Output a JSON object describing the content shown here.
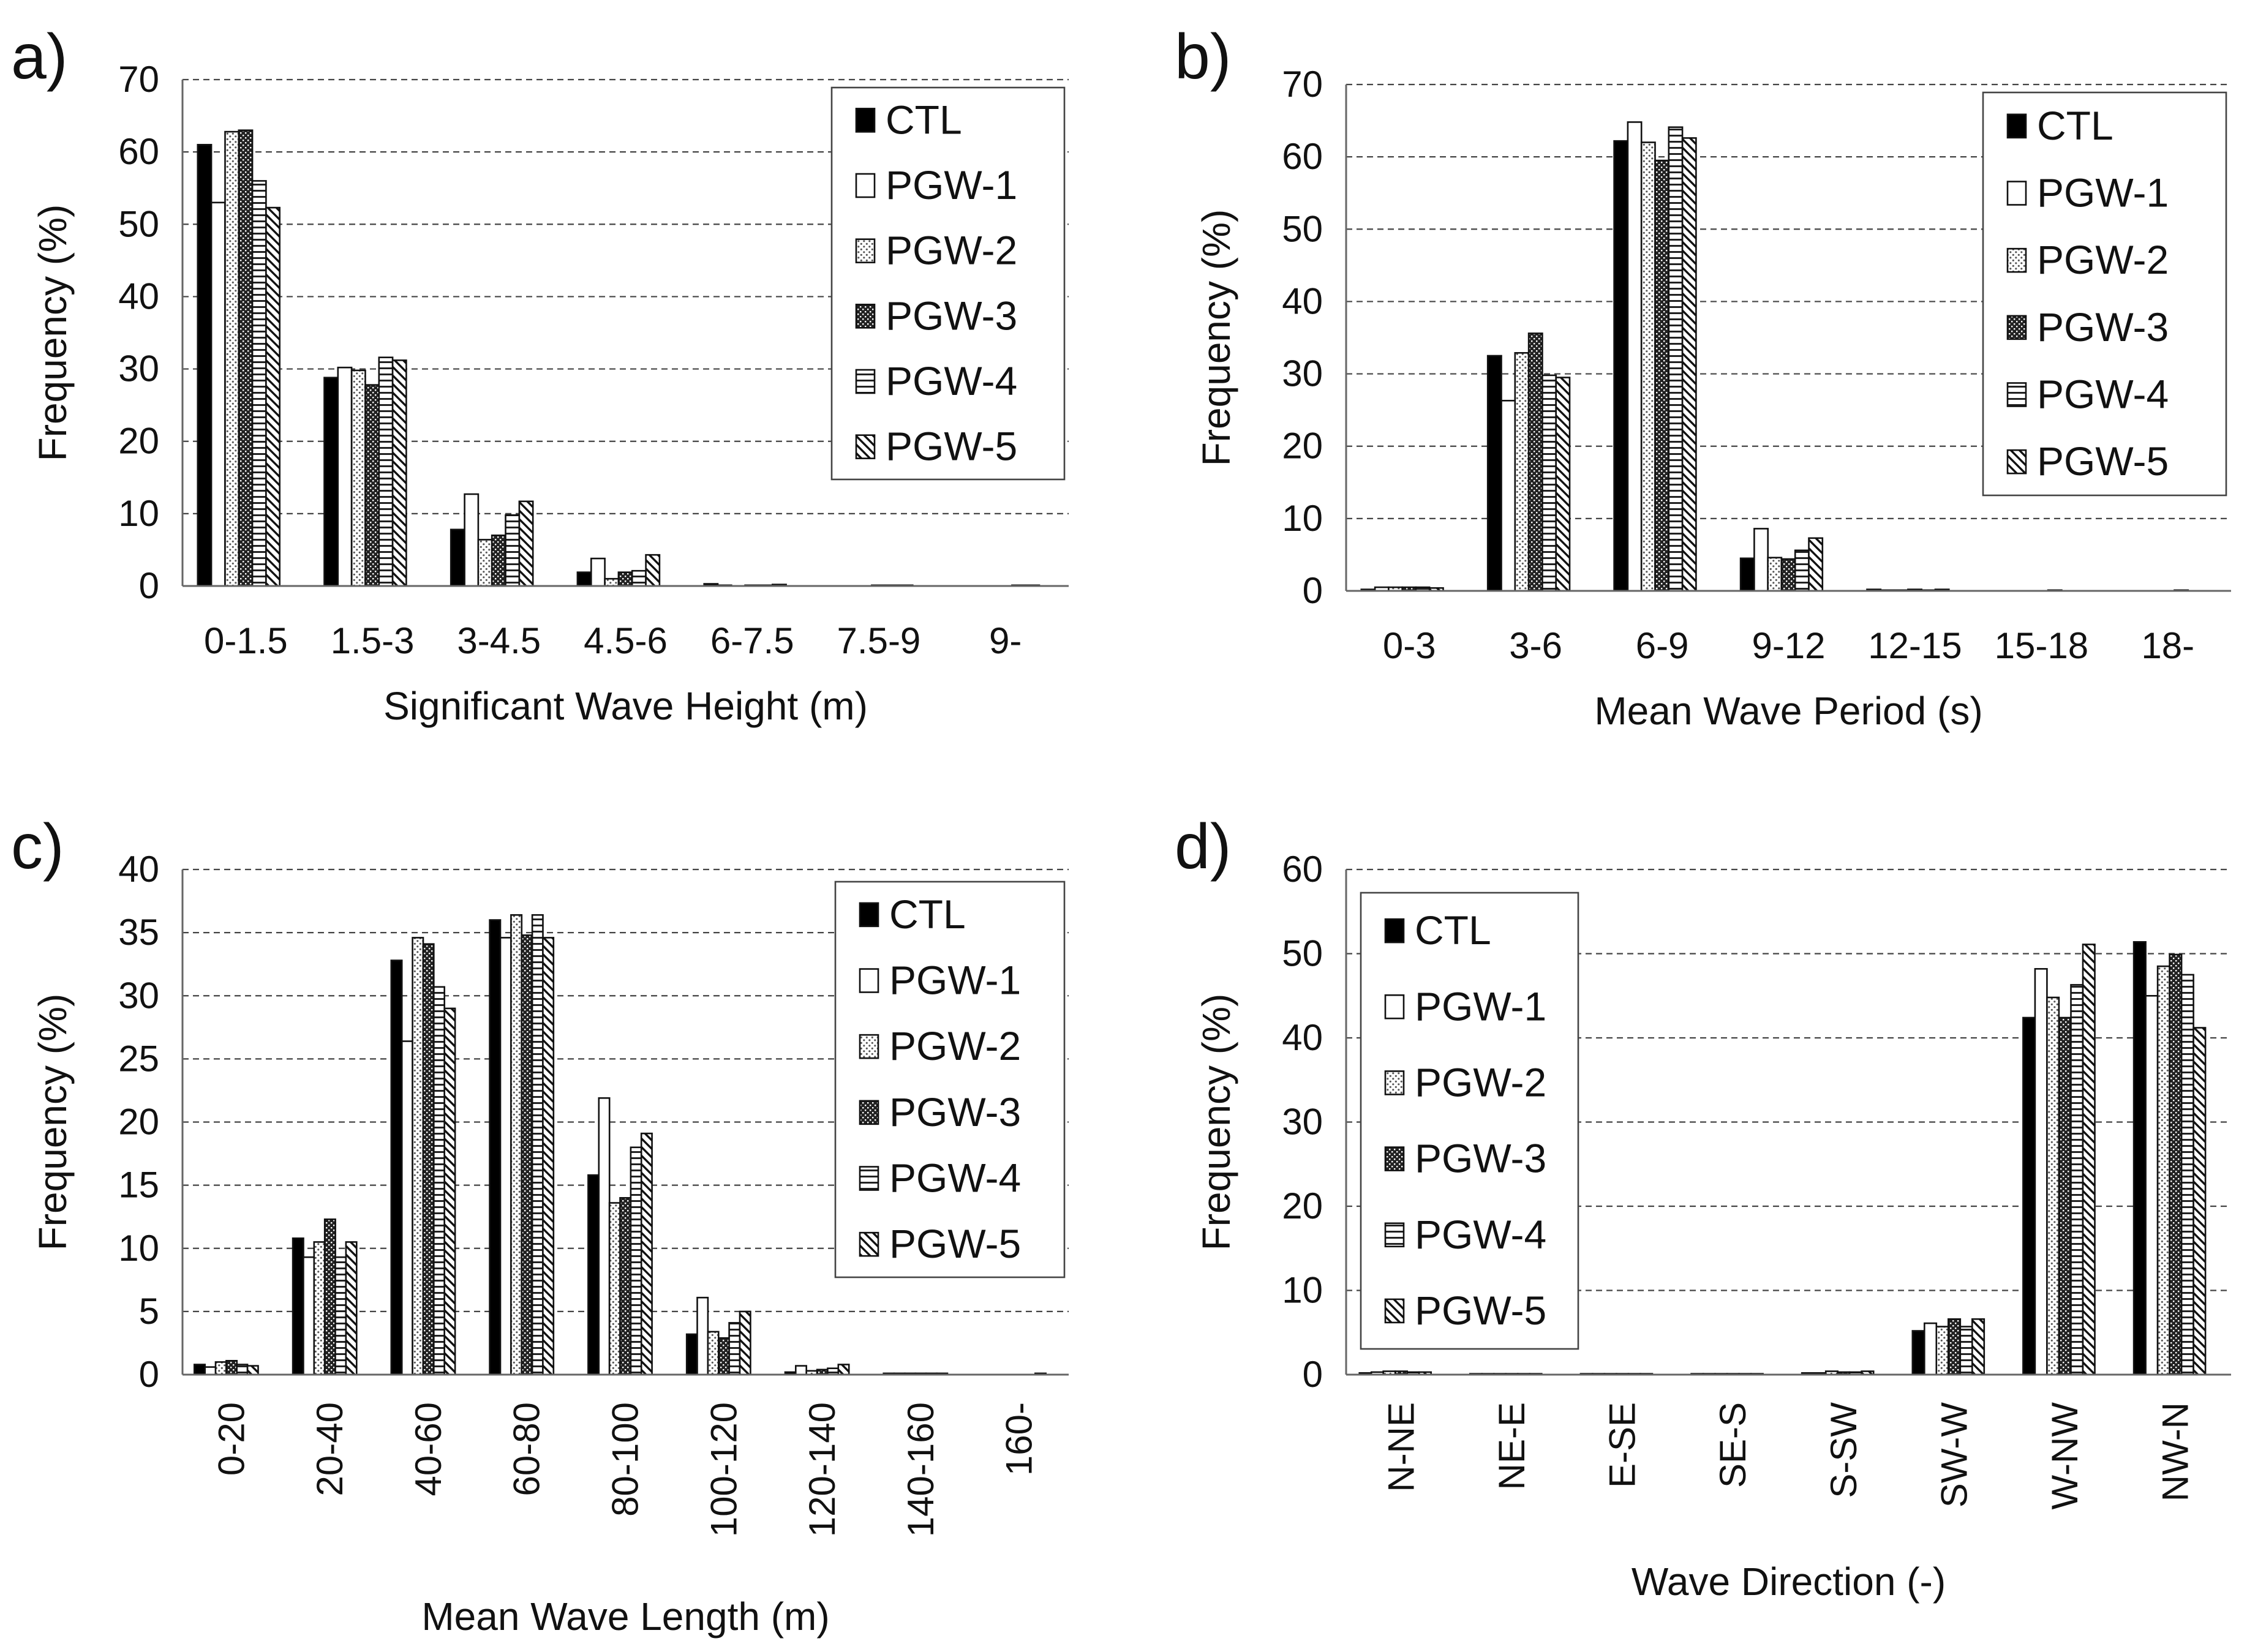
{
  "legend_series": [
    "CTL",
    "PGW-1",
    "PGW-2",
    "PGW-3",
    "PGW-4",
    "PGW-5"
  ],
  "chart_data": [
    {
      "panel_label": "a)",
      "type": "bar",
      "xlabel": "Significant Wave Height (m)",
      "ylabel": "Frequency (%)",
      "ylim": [
        0,
        70
      ],
      "yticks": [
        "0",
        "10",
        "20",
        "30",
        "40",
        "50",
        "60",
        "70"
      ],
      "grid": "horizontal-dashed",
      "legend_position": "top-right",
      "categories": [
        "0-1.5",
        "1.5-3",
        "3-4.5",
        "4.5-6",
        "6-7.5",
        "7.5-9",
        "9-"
      ],
      "series": [
        {
          "name": "CTL",
          "values": [
            61,
            28.8,
            7.8,
            1.9,
            0.3,
            0,
            0
          ]
        },
        {
          "name": "PGW-1",
          "values": [
            53,
            30.2,
            12.7,
            3.8,
            0.1,
            0,
            0
          ]
        },
        {
          "name": "PGW-2",
          "values": [
            62.8,
            29.8,
            6.4,
            1,
            0,
            0,
            0
          ]
        },
        {
          "name": "PGW-3",
          "values": [
            63,
            27.8,
            7,
            1.9,
            0.1,
            0.1,
            0
          ]
        },
        {
          "name": "PGW-4",
          "values": [
            56,
            31.6,
            9.8,
            2.1,
            0.1,
            0.1,
            0.1
          ]
        },
        {
          "name": "PGW-5",
          "values": [
            52.3,
            31.2,
            11.7,
            4.3,
            0.2,
            0.1,
            0.1
          ]
        }
      ]
    },
    {
      "panel_label": "b)",
      "type": "bar",
      "xlabel": "Mean Wave Period (s)",
      "ylabel": "Frequency (%)",
      "ylim": [
        0,
        70
      ],
      "yticks": [
        "0",
        "10",
        "20",
        "30",
        "40",
        "50",
        "60",
        "70"
      ],
      "grid": "horizontal-dashed",
      "legend_position": "top-right",
      "categories": [
        "0-3",
        "3-6",
        "6-9",
        "9-12",
        "12-15",
        "15-18",
        "18-"
      ],
      "series": [
        {
          "name": "CTL",
          "values": [
            0.2,
            32.5,
            62.2,
            4.5,
            0.2,
            0,
            0
          ]
        },
        {
          "name": "PGW-1",
          "values": [
            0.5,
            26.3,
            64.8,
            8.6,
            0.1,
            0,
            0
          ]
        },
        {
          "name": "PGW-2",
          "values": [
            0.5,
            32.9,
            62,
            4.6,
            0.1,
            0,
            0
          ]
        },
        {
          "name": "PGW-3",
          "values": [
            0.5,
            35.6,
            59.5,
            4.4,
            0.2,
            0,
            0
          ]
        },
        {
          "name": "PGW-4",
          "values": [
            0.5,
            29.8,
            64.1,
            5.6,
            0.1,
            0.1,
            0.1
          ]
        },
        {
          "name": "PGW-5",
          "values": [
            0.4,
            29.5,
            62.6,
            7.3,
            0.2,
            0,
            0
          ]
        }
      ]
    },
    {
      "panel_label": "c)",
      "type": "bar",
      "xlabel": "Mean Wave Length (m)",
      "ylabel": "Frequency (%)",
      "ylim": [
        0,
        40
      ],
      "yticks": [
        "0",
        "5",
        "10",
        "15",
        "20",
        "25",
        "30",
        "35",
        "40"
      ],
      "grid": "horizontal-dashed",
      "legend_position": "top-right",
      "categories": [
        "0-20",
        "20-40",
        "40-60",
        "60-80",
        "80-100",
        "100-120",
        "120-140",
        "140-160",
        "160-"
      ],
      "series": [
        {
          "name": "CTL",
          "values": [
            0.8,
            10.8,
            32.8,
            36,
            15.8,
            3.2,
            0.2,
            0.1,
            0
          ]
        },
        {
          "name": "PGW-1",
          "values": [
            0.6,
            9.3,
            26.4,
            34.6,
            21.9,
            6.1,
            0.7,
            0.1,
            0
          ]
        },
        {
          "name": "PGW-2",
          "values": [
            1,
            10.5,
            34.6,
            36.4,
            13.6,
            3.4,
            0.3,
            0.1,
            0
          ]
        },
        {
          "name": "PGW-3",
          "values": [
            1.1,
            12.3,
            34.1,
            34.8,
            14,
            2.9,
            0.4,
            0.1,
            0
          ]
        },
        {
          "name": "PGW-4",
          "values": [
            0.8,
            9.3,
            30.7,
            36.4,
            18,
            4.1,
            0.5,
            0.1,
            0
          ]
        },
        {
          "name": "PGW-5",
          "values": [
            0.7,
            10.5,
            29,
            34.6,
            19.1,
            5,
            0.8,
            0.1,
            0.1
          ]
        }
      ]
    },
    {
      "panel_label": "d)",
      "type": "bar",
      "xlabel": "Wave Direction (-)",
      "ylabel": "Frequency (%)",
      "ylim": [
        0,
        60
      ],
      "yticks": [
        "0",
        "10",
        "20",
        "30",
        "40",
        "50",
        "60"
      ],
      "grid": "horizontal-dashed",
      "legend_position": "top-left",
      "categories": [
        "N-NE",
        "NE-E",
        "E-SE",
        "SE-S",
        "S-SW",
        "SW-W",
        "W-NW",
        "NW-N"
      ],
      "series": [
        {
          "name": "CTL",
          "values": [
            0.2,
            0.1,
            0.1,
            0.1,
            0.2,
            5.2,
            42.4,
            51.4
          ]
        },
        {
          "name": "PGW-1",
          "values": [
            0.3,
            0.1,
            0.1,
            0.1,
            0.2,
            6.1,
            48.2,
            45
          ]
        },
        {
          "name": "PGW-2",
          "values": [
            0.4,
            0.1,
            0.1,
            0.1,
            0.4,
            5.7,
            44.8,
            48.5
          ]
        },
        {
          "name": "PGW-3",
          "values": [
            0.4,
            0.1,
            0.1,
            0.1,
            0.3,
            6.6,
            42.4,
            49.9
          ]
        },
        {
          "name": "PGW-4",
          "values": [
            0.3,
            0.1,
            0.1,
            0.1,
            0.3,
            5.7,
            46.3,
            47.5
          ]
        },
        {
          "name": "PGW-5",
          "values": [
            0.3,
            0.1,
            0.1,
            0.1,
            0.4,
            6.6,
            51.1,
            41.2
          ]
        }
      ]
    }
  ]
}
